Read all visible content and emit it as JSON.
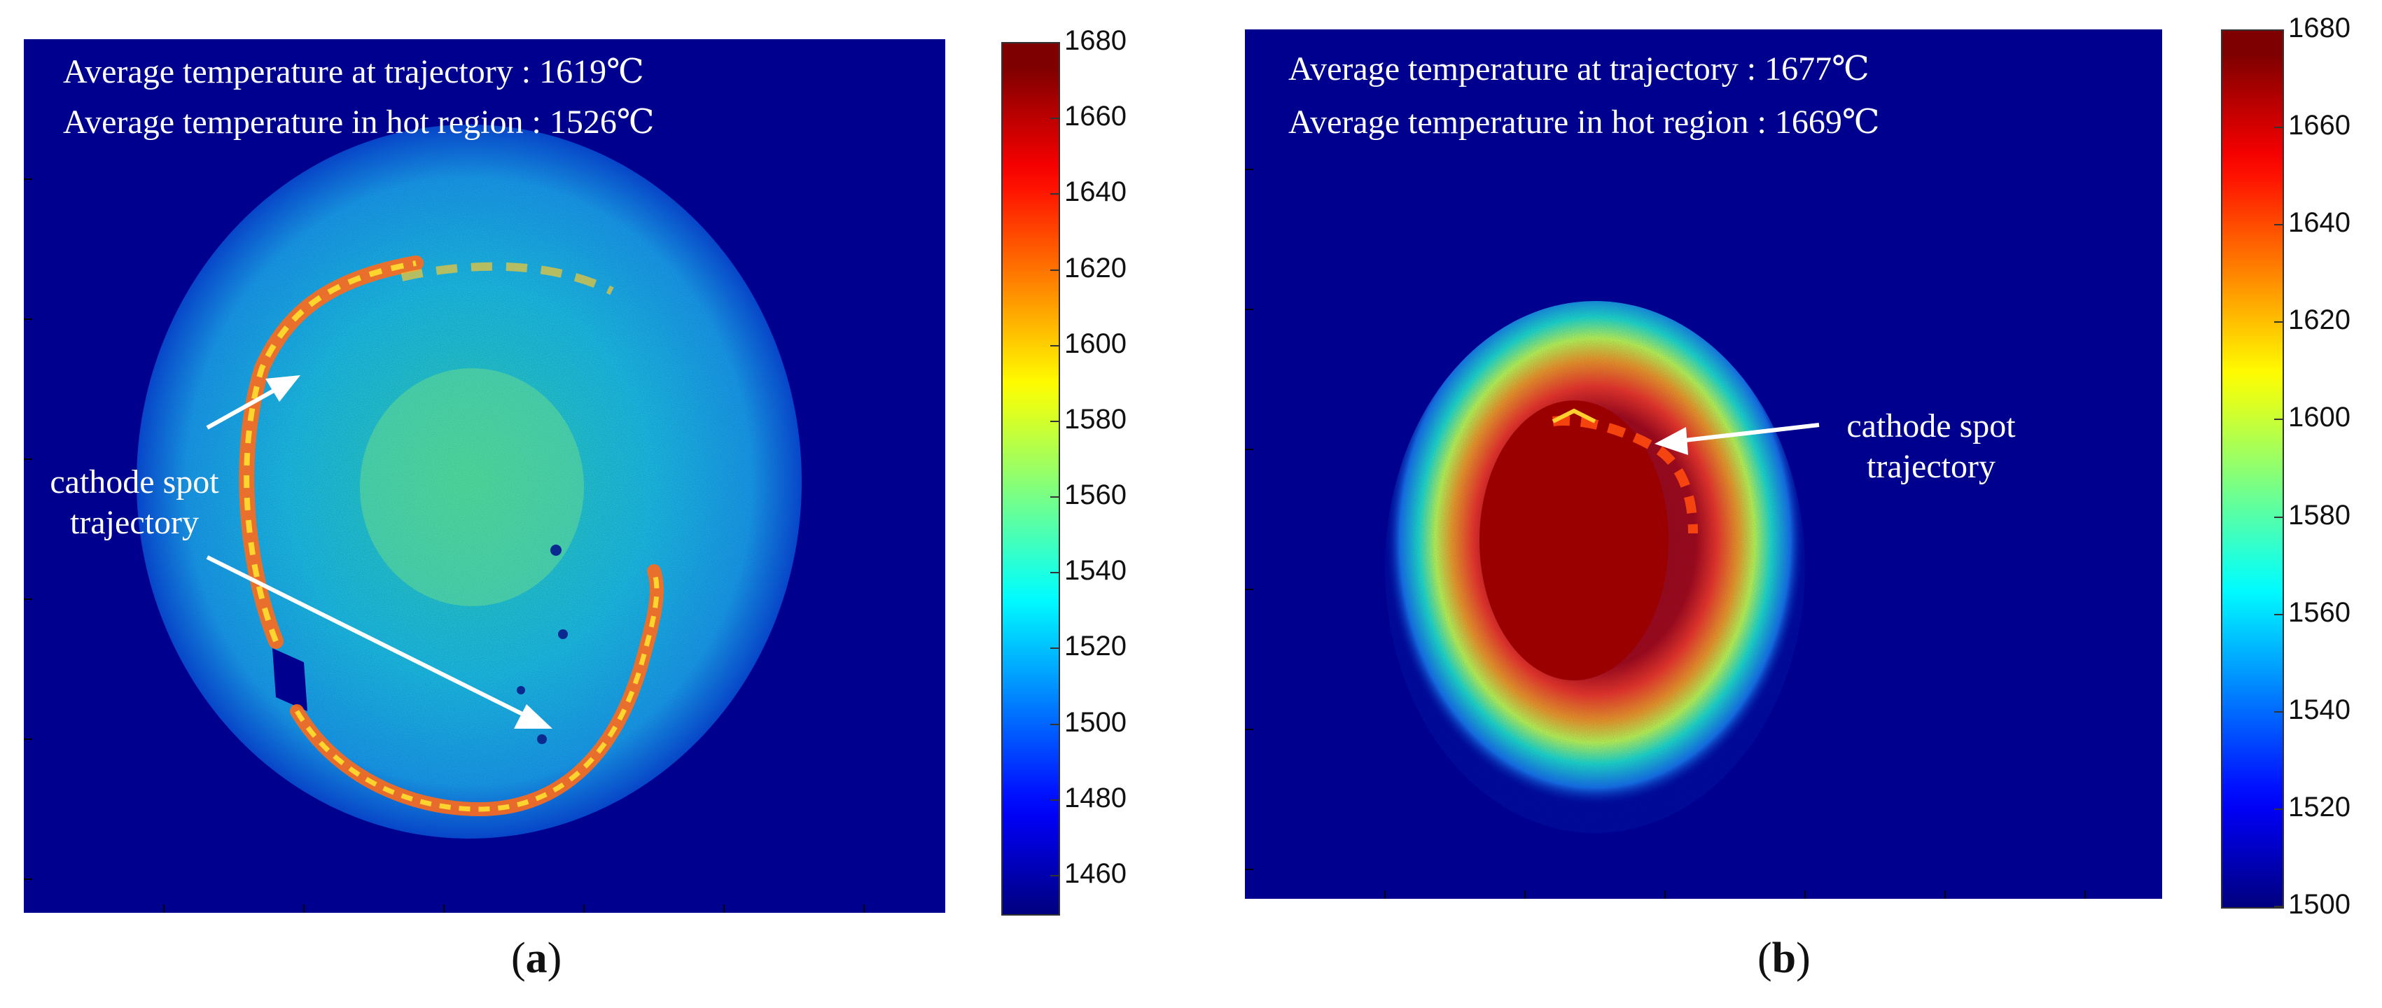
{
  "panels": {
    "a": {
      "avg_trajectory": "Average temperature at trajectory : 1619℃",
      "avg_hot_region": "Average temperature in hot region : 1526℃",
      "annotation_line1": "cathode spot",
      "annotation_line2": "trajectory",
      "colorbar": {
        "labels": [
          "1680",
          "1660",
          "1640",
          "1620",
          "1600",
          "1580",
          "1560",
          "1540",
          "1520",
          "1500",
          "1480",
          "1460"
        ],
        "min": 1450,
        "max": 1680
      },
      "caption_open": "(",
      "caption_letter": "a",
      "caption_close": ")"
    },
    "b": {
      "avg_trajectory": "Average temperature at trajectory : 1677℃",
      "avg_hot_region": "Average temperature in hot region : 1669℃",
      "annotation_line1": "cathode spot",
      "annotation_line2": "trajectory",
      "colorbar": {
        "labels": [
          "1680",
          "1660",
          "1640",
          "1620",
          "1600",
          "1580",
          "1560",
          "1540",
          "1520",
          "1500"
        ],
        "min": 1500,
        "max": 1680
      },
      "caption_open": "(",
      "caption_letter": "b",
      "caption_close": ")"
    }
  },
  "colors": {
    "background_field": "#00008f",
    "jet_stops": [
      "#00007f",
      "#0000ff",
      "#007fff",
      "#00ffff",
      "#7fff7f",
      "#ffff00",
      "#ff7f00",
      "#ff0000",
      "#7f0000"
    ]
  }
}
